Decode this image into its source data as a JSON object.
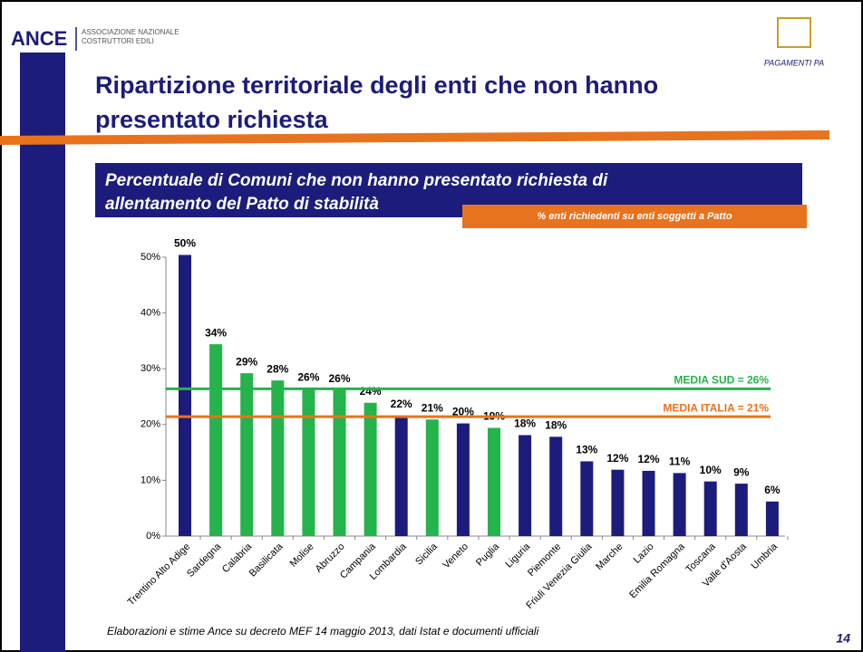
{
  "header": {
    "brand": "ANCE",
    "brand_sub": [
      "ASSOCIAZIONE NAZIONALE",
      "COSTRUTTORI EDILI"
    ],
    "logo": "PAGAMENTI PA",
    "title": [
      "Ripartizione territoriale degli enti che non hanno",
      "presentato richiesta"
    ]
  },
  "chart_data": {
    "type": "bar",
    "title": [
      "Percentuale di Comuni che non hanno presentato richiesta di",
      "allentamento del Patto di stabilità"
    ],
    "subtitle": "% enti richiedenti su enti soggetti a Patto",
    "categories": [
      "Trentino Alto Adige",
      "Sardegna",
      "Calabria",
      "Basilicata",
      "Molise",
      "Abruzzo",
      "Campania",
      "Lombardia",
      "Sicilia",
      "Veneto",
      "Puglia",
      "Liguria",
      "Piemonte",
      "Friuli Venezia Giulia",
      "Marche",
      "Lazio",
      "Emilia Romagna",
      "Toscana",
      "Valle d'Aosta",
      "Umbria"
    ],
    "values": [
      50.4,
      34.4,
      29.2,
      27.9,
      26.4,
      26.2,
      23.9,
      21.6,
      20.9,
      20.2,
      19.4,
      18.1,
      17.8,
      13.4,
      11.9,
      11.7,
      11.3,
      9.8,
      9.4,
      6.2
    ],
    "value_labels": [
      "50%",
      "34%",
      "29%",
      "28%",
      "26%",
      "26%",
      "24%",
      "22%",
      "21%",
      "20%",
      "19%",
      "18%",
      "18%",
      "13%",
      "12%",
      "12%",
      "11%",
      "10%",
      "9%",
      "6%"
    ],
    "colors": [
      "#1c1c7c",
      "#25b34b",
      "#25b34b",
      "#25b34b",
      "#25b34b",
      "#25b34b",
      "#25b34b",
      "#1c1c7c",
      "#25b34b",
      "#1c1c7c",
      "#25b34b",
      "#1c1c7c",
      "#1c1c7c",
      "#1c1c7c",
      "#1c1c7c",
      "#1c1c7c",
      "#1c1c7c",
      "#1c1c7c",
      "#1c1c7c",
      "#1c1c7c"
    ],
    "ylim": [
      0,
      50
    ],
    "yticks": [
      {
        "value": 0,
        "label": "0%"
      },
      {
        "value": 10,
        "label": "10%"
      },
      {
        "value": 20,
        "label": "20%"
      },
      {
        "value": 30,
        "label": "30%"
      },
      {
        "value": 40,
        "label": "40%"
      },
      {
        "value": 50,
        "label": "50%"
      }
    ],
    "ref_lines": [
      {
        "label": "MEDIA SUD = 26%",
        "value": 26.4,
        "color": "#25b34b"
      },
      {
        "label": "MEDIA ITALIA = 21%",
        "value": 21.4,
        "color": "#e8731e"
      }
    ]
  },
  "footer": {
    "source": "Elaborazioni e stime Ance su decreto MEF 14 maggio 2013, dati Istat e documenti ufficiali",
    "page": "14"
  }
}
